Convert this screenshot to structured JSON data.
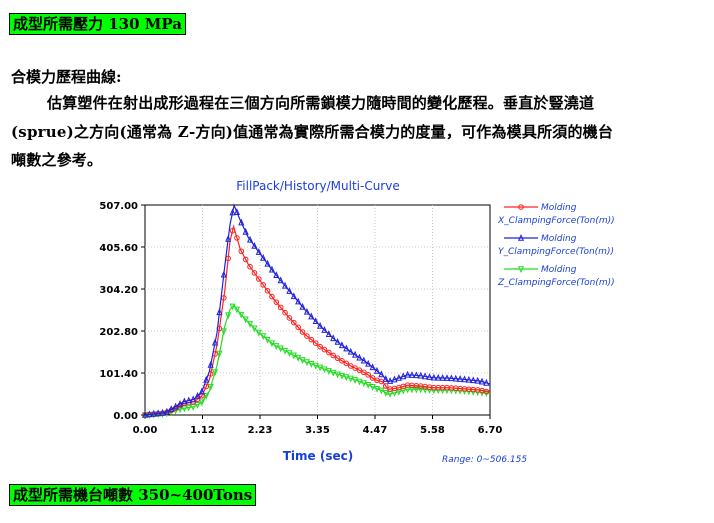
{
  "top_label": "成型所需壓力 130 MPa",
  "section_title": "合模力歷程曲線:",
  "paragraph": {
    "line1": "估算塑件在射出成形過程在三個方向所需鎖模力隨時間的變化歷程。垂直於豎澆道",
    "line2": "(sprue)之方向(通常為 Z-方向)值通常為實際所需合模力的度量，可作為模具所須的機台",
    "line3": "噸數之參考。"
  },
  "bottom_label": "成型所需機台噸數 350~400Tons",
  "chart_data": {
    "type": "line",
    "title": "FillPack/History/Multi-Curve",
    "xlabel": "Time (sec)",
    "ylabel": "",
    "range_note": "Range: 0~506.155",
    "xlim": [
      0,
      6.7
    ],
    "ylim": [
      0,
      507
    ],
    "x_ticks": [
      "0.00",
      "1.12",
      "2.23",
      "3.35",
      "4.47",
      "5.58",
      "6.70"
    ],
    "y_ticks": [
      "0.00",
      "101.40",
      "202.80",
      "304.20",
      "405.60",
      "507.00"
    ],
    "grid": true,
    "legend_position": "right",
    "series": [
      {
        "name": "X_ClampingForce(Ton(m))",
        "legend_top": "Molding",
        "color": "#ff2020",
        "marker": "circle",
        "points": [
          [
            0,
            0
          ],
          [
            0.4,
            5
          ],
          [
            0.62,
            18
          ],
          [
            0.75,
            28
          ],
          [
            0.95,
            32
          ],
          [
            1.1,
            45
          ],
          [
            1.25,
            85
          ],
          [
            1.4,
            170
          ],
          [
            1.55,
            300
          ],
          [
            1.65,
            420
          ],
          [
            1.72,
            455
          ],
          [
            1.85,
            400
          ],
          [
            2.0,
            365
          ],
          [
            2.2,
            330
          ],
          [
            2.5,
            280
          ],
          [
            2.8,
            235
          ],
          [
            3.1,
            195
          ],
          [
            3.4,
            165
          ],
          [
            3.7,
            140
          ],
          [
            4.0,
            118
          ],
          [
            4.3,
            100
          ],
          [
            4.47,
            85
          ],
          [
            4.62,
            80
          ],
          [
            4.72,
            62
          ],
          [
            4.9,
            65
          ],
          [
            5.1,
            72
          ],
          [
            5.35,
            70
          ],
          [
            5.6,
            66
          ],
          [
            5.9,
            66
          ],
          [
            6.2,
            63
          ],
          [
            6.5,
            60
          ],
          [
            6.7,
            55
          ]
        ]
      },
      {
        "name": "Y_ClampingForce(Ton(m))",
        "legend_top": "Molding",
        "color": "#2020dd",
        "marker": "triangle",
        "points": [
          [
            0,
            0
          ],
          [
            0.4,
            6
          ],
          [
            0.62,
            22
          ],
          [
            0.75,
            32
          ],
          [
            0.95,
            38
          ],
          [
            1.1,
            55
          ],
          [
            1.25,
            105
          ],
          [
            1.4,
            200
          ],
          [
            1.55,
            360
          ],
          [
            1.65,
            460
          ],
          [
            1.73,
            506
          ],
          [
            1.85,
            470
          ],
          [
            2.0,
            430
          ],
          [
            2.2,
            395
          ],
          [
            2.5,
            345
          ],
          [
            2.8,
            300
          ],
          [
            3.1,
            255
          ],
          [
            3.4,
            215
          ],
          [
            3.7,
            180
          ],
          [
            4.0,
            152
          ],
          [
            4.3,
            127
          ],
          [
            4.47,
            110
          ],
          [
            4.62,
            95
          ],
          [
            4.72,
            80
          ],
          [
            4.9,
            88
          ],
          [
            5.1,
            97
          ],
          [
            5.35,
            95
          ],
          [
            5.6,
            90
          ],
          [
            5.9,
            89
          ],
          [
            6.2,
            86
          ],
          [
            6.5,
            82
          ],
          [
            6.7,
            75
          ]
        ]
      },
      {
        "name": "Z_ClampingForce(Ton(m))",
        "legend_top": "Molding",
        "color": "#22dd22",
        "marker": "triangle-down",
        "points": [
          [
            0,
            0
          ],
          [
            0.4,
            3
          ],
          [
            0.62,
            12
          ],
          [
            0.75,
            16
          ],
          [
            0.95,
            20
          ],
          [
            1.1,
            30
          ],
          [
            1.25,
            58
          ],
          [
            1.4,
            120
          ],
          [
            1.55,
            215
          ],
          [
            1.65,
            255
          ],
          [
            1.72,
            265
          ],
          [
            1.85,
            245
          ],
          [
            2.0,
            225
          ],
          [
            2.2,
            200
          ],
          [
            2.5,
            170
          ],
          [
            2.8,
            150
          ],
          [
            3.1,
            130
          ],
          [
            3.4,
            115
          ],
          [
            3.7,
            100
          ],
          [
            4.0,
            88
          ],
          [
            4.3,
            75
          ],
          [
            4.47,
            65
          ],
          [
            4.62,
            58
          ],
          [
            4.72,
            50
          ],
          [
            4.9,
            55
          ],
          [
            5.1,
            62
          ],
          [
            5.35,
            62
          ],
          [
            5.6,
            60
          ],
          [
            5.9,
            60
          ],
          [
            6.2,
            58
          ],
          [
            6.5,
            55
          ],
          [
            6.7,
            52
          ]
        ]
      }
    ]
  }
}
